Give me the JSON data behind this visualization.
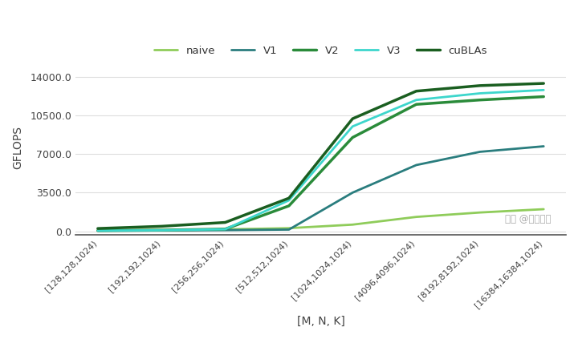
{
  "x_labels": [
    "[128,128,1024)",
    "[192,192,1024)",
    "[256,256,1024)",
    "[512,512,1024)",
    "[1024,1024,1024)",
    "[4096,4096,1024)",
    "[8192,8192,1024)",
    "[16384,16384,1024)"
  ],
  "series": {
    "naive": {
      "values": [
        80,
        120,
        170,
        280,
        600,
        1300,
        1700,
        2000
      ],
      "color": "#8fcc5a",
      "linewidth": 2.0
    },
    "V1": {
      "values": [
        50,
        70,
        100,
        150,
        3500,
        6000,
        7200,
        7700
      ],
      "color": "#2a7d7e",
      "linewidth": 2.0
    },
    "V2": {
      "values": [
        60,
        100,
        200,
        2300,
        8500,
        11500,
        11900,
        12200
      ],
      "color": "#2a8b3a",
      "linewidth": 2.5
    },
    "V3": {
      "values": [
        55,
        90,
        180,
        2800,
        9500,
        11900,
        12500,
        12800
      ],
      "color": "#3dd6cc",
      "linewidth": 2.0
    },
    "cuBLAs": {
      "values": [
        250,
        450,
        800,
        3000,
        10200,
        12700,
        13200,
        13400
      ],
      "color": "#1a5e20",
      "linewidth": 2.5
    }
  },
  "xlabel": "[M, N, K]",
  "ylabel": "GFLOPS",
  "yticks": [
    0.0,
    3500.0,
    7000.0,
    10500.0,
    14000.0
  ],
  "ylim": [
    -300,
    15500
  ],
  "background_color": "#ffffff",
  "grid_color": "#dddddd",
  "legend_order": [
    "naive",
    "V1",
    "V2",
    "V3",
    "cuBLAs"
  ],
  "watermark": "知乎 @紫气东来"
}
